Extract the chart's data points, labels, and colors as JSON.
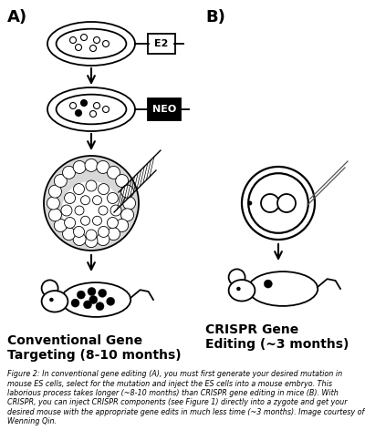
{
  "background_color": "#ffffff",
  "title_A": "A)",
  "title_B": "B)",
  "label_A": "Conventional Gene\nTargeting (8-10 months)",
  "label_B": "CRISPR Gene\nEditing (~3 months)",
  "caption": "Figure 2: In conventional gene editing (A), you must first generate your desired mutation in mouse ES cells, select for the mutation and inject the ES cells into a mouse embryo. This laborious process takes longer (~8-10 months) than CRISPR gene editing in mice (B). With CRISPR, you can inject CRISPR components (see Figure 1) directly into a zygote and get your desired mouse with the appropriate gene edits in much less time (~3 months). Image courtesy of Wenning Qin.",
  "figsize": [
    4.0,
    4.72
  ],
  "dpi": 100
}
